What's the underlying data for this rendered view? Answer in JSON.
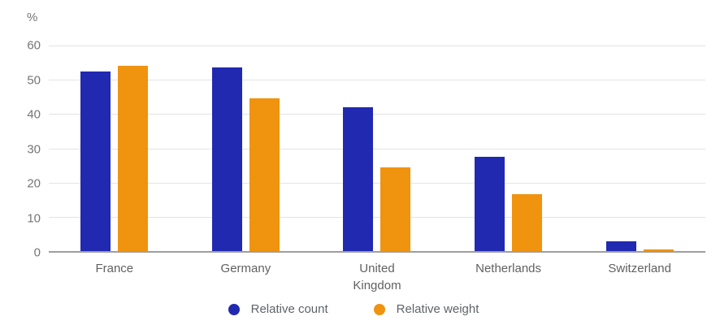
{
  "chart_data": {
    "type": "bar",
    "title": "",
    "unit_label": "%",
    "categories": [
      "France",
      "Germany",
      "United Kingdom",
      "Netherlands",
      "Switzerland"
    ],
    "series": [
      {
        "name": "Relative count",
        "color": "#2129b0",
        "values": [
          52.5,
          53.5,
          42,
          27.5,
          2.8
        ]
      },
      {
        "name": "Relative weight",
        "color": "#f0930f",
        "values": [
          54,
          44.5,
          24.5,
          16.5,
          0.5
        ]
      }
    ],
    "ylim": [
      0,
      60
    ],
    "yticks": [
      0,
      10,
      20,
      30,
      40,
      50,
      60
    ],
    "grid": "horizontal",
    "legend_position": "bottom"
  },
  "colors": {
    "background": "#ffffff",
    "gridline": "#e4e4e4",
    "axis_line": "#9e9e9e",
    "tick_text": "#757575",
    "category_text": "#616161",
    "legend_text": "#5f6368"
  }
}
